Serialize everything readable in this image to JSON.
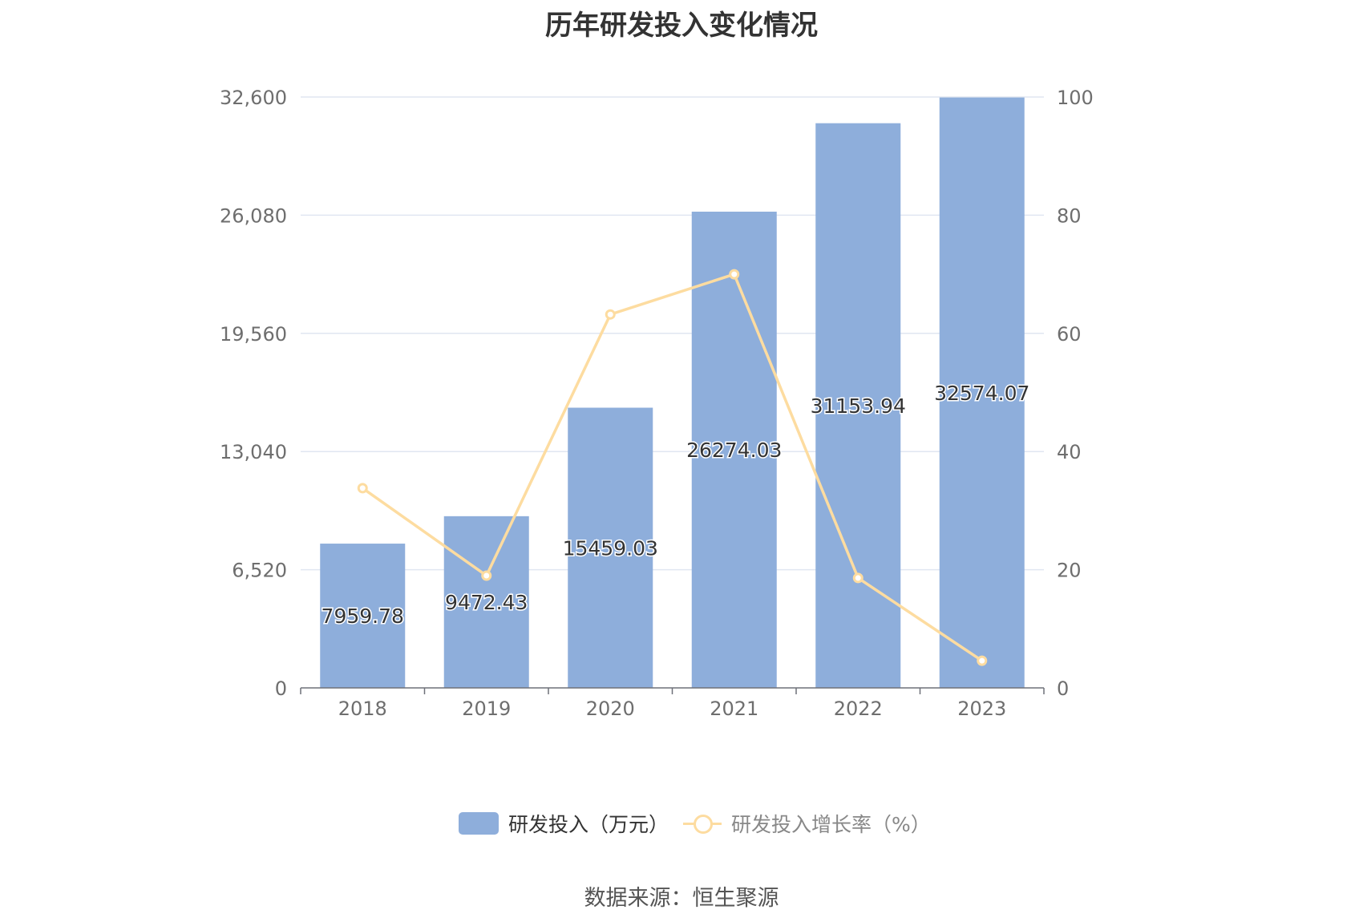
{
  "chart_data": {
    "type": "bar",
    "title": "历年研发投入变化情况",
    "categories": [
      "2018",
      "2019",
      "2020",
      "2021",
      "2022",
      "2023"
    ],
    "series": [
      {
        "name": "研发投入（万元）",
        "type": "bar",
        "axis": "left",
        "values": [
          7959.78,
          9472.43,
          15459.03,
          26274.03,
          31153.94,
          32574.07
        ],
        "labels": [
          "7959.78",
          "9472.43",
          "15459.03",
          "26274.03",
          "31153.94",
          "32574.07"
        ],
        "color": "#8eaedb"
      },
      {
        "name": "研发投入增长率（%）",
        "type": "line",
        "axis": "right",
        "values": [
          33.8,
          19.0,
          63.2,
          70.0,
          18.6,
          4.6
        ],
        "color": "#fddca0"
      }
    ],
    "y_left": {
      "ylim": [
        0,
        32600
      ],
      "ticks": [
        "0",
        "6,520",
        "13,040",
        "19,560",
        "26,080",
        "32,600"
      ]
    },
    "y_right": {
      "ylim": [
        0,
        100
      ],
      "ticks": [
        "0",
        "20",
        "40",
        "60",
        "80",
        "100"
      ]
    },
    "grid": true,
    "legend_position": "bottom"
  },
  "source_text": "数据来源：恒生聚源"
}
